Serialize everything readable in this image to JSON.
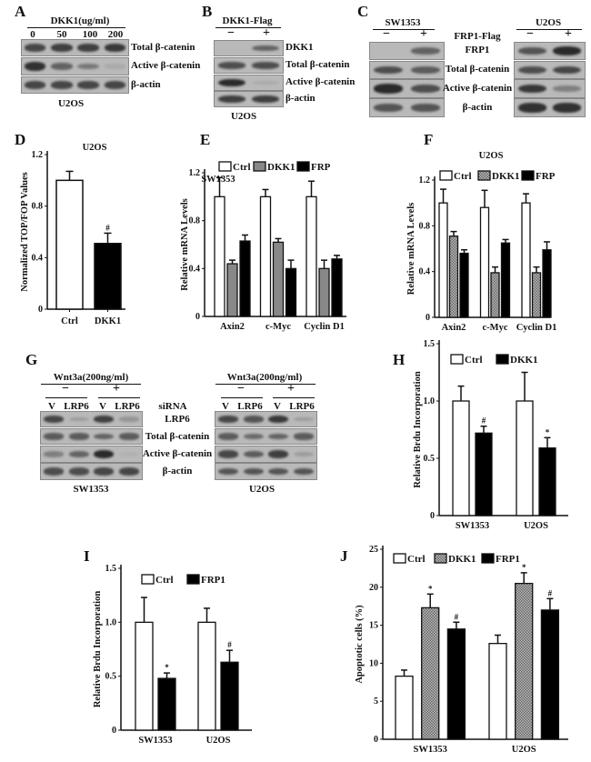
{
  "panels": {
    "A": {
      "label": "A",
      "header": "DKK1(ug/ml)",
      "lanes": [
        "0",
        "50",
        "100",
        "200"
      ],
      "rows": [
        "Total β-catenin",
        "Active β-catenin",
        "β-actin"
      ],
      "cell": "U2OS"
    },
    "B": {
      "label": "B",
      "header": "DKK1-Flag",
      "lanes": [
        "−",
        "+"
      ],
      "rows": [
        "DKK1",
        "Total β-catenin",
        "Active β-catenin",
        "β-actin"
      ],
      "cell": "U2OS"
    },
    "C": {
      "label": "C",
      "left_header": "SW1353",
      "right_header": "U2OS",
      "treatment": "FRP1-Flag",
      "lanes": [
        "−",
        "+"
      ],
      "rows": [
        "FRP1",
        "Total β-catenin",
        "Active β-catenin",
        "β-actin"
      ]
    },
    "G": {
      "label": "G",
      "header": "Wnt3a(200ng/ml)",
      "groups": [
        "−",
        "+"
      ],
      "sirna_label": "siRNA",
      "lanes": [
        "V",
        "LRP6",
        "V",
        "LRP6"
      ],
      "rows": [
        "LRP6",
        "Total β-catenin",
        "Active β-catenin",
        "β-actin"
      ],
      "left_cell": "SW1353",
      "right_cell": "U2OS"
    }
  },
  "chart_data": [
    {
      "panel": "D",
      "type": "bar",
      "title": "U2OS",
      "ylabel": "Normalized TOP/FOP Values",
      "xlabel": "",
      "categories": [
        "Ctrl",
        "DKK1"
      ],
      "series": [
        {
          "values": [
            1.0,
            0.51
          ],
          "errors": [
            0.07,
            0.08
          ],
          "annotations": [
            "",
            "#"
          ],
          "colors": [
            "#ffffff",
            "#000000"
          ]
        }
      ],
      "yticks": [
        "0",
        "0.4",
        "0.8",
        "1.2"
      ],
      "ylim": [
        0,
        1.2
      ],
      "legend": null
    },
    {
      "panel": "E",
      "type": "bar",
      "title": "SW1353",
      "ylabel": "Relative mRNA Levels",
      "xlabel": "",
      "categories": [
        "Axin2",
        "c-Myc",
        "Cyclin D1"
      ],
      "series": [
        {
          "name": "Ctrl",
          "values": [
            1.0,
            1.0,
            1.0
          ],
          "errors": [
            0.16,
            0.06,
            0.13
          ],
          "color": "#ffffff"
        },
        {
          "name": "DKK1",
          "values": [
            0.44,
            0.62,
            0.4
          ],
          "errors": [
            0.03,
            0.03,
            0.07
          ],
          "color": "#888888"
        },
        {
          "name": "FRP",
          "values": [
            0.63,
            0.4,
            0.48
          ],
          "errors": [
            0.05,
            0.07,
            0.03
          ],
          "color": "#000000"
        }
      ],
      "yticks": [
        "0",
        "0.4",
        "0.8",
        "1.2"
      ],
      "ylim": [
        0,
        1.2
      ],
      "legend": "top"
    },
    {
      "panel": "F",
      "type": "bar",
      "title": "U2OS",
      "ylabel": "Relative mRNA Levels",
      "xlabel": "",
      "categories": [
        "Axin2",
        "c-Myc",
        "Cyclin D1"
      ],
      "series": [
        {
          "name": "Ctrl",
          "values": [
            1.0,
            0.96,
            1.0
          ],
          "errors": [
            0.12,
            0.15,
            0.08
          ],
          "color": "#ffffff"
        },
        {
          "name": "DKK1",
          "values": [
            0.71,
            0.39,
            0.39
          ],
          "errors": [
            0.04,
            0.05,
            0.05
          ],
          "color": "hatched-gray"
        },
        {
          "name": "FRP",
          "values": [
            0.56,
            0.65,
            0.59
          ],
          "errors": [
            0.03,
            0.03,
            0.07
          ],
          "color": "#000000"
        }
      ],
      "yticks": [
        "0",
        "0.4",
        "0.8",
        "1.2"
      ],
      "ylim": [
        0,
        1.2
      ],
      "legend": "top"
    },
    {
      "panel": "H",
      "type": "bar",
      "title": "",
      "ylabel": "Relative Brdu Incorporation",
      "xlabel": "",
      "categories": [
        "SW1353",
        "U2OS"
      ],
      "series": [
        {
          "name": "Ctrl",
          "values": [
            1.0,
            1.0
          ],
          "errors": [
            0.13,
            0.25
          ],
          "annotations": [
            "",
            ""
          ],
          "color": "#ffffff"
        },
        {
          "name": "DKK1",
          "values": [
            0.72,
            0.59
          ],
          "errors": [
            0.06,
            0.09
          ],
          "annotations": [
            "#",
            "*"
          ],
          "color": "#000000"
        }
      ],
      "yticks": [
        "0",
        "0.5",
        "1.0",
        "1.5"
      ],
      "ylim": [
        0,
        1.5
      ],
      "legend": "top"
    },
    {
      "panel": "I",
      "type": "bar",
      "title": "",
      "ylabel": "Relative Brdu Incorporation",
      "xlabel": "",
      "categories": [
        "SW1353",
        "U2OS"
      ],
      "series": [
        {
          "name": "Ctrl",
          "values": [
            1.0,
            1.0
          ],
          "errors": [
            0.23,
            0.13
          ],
          "annotations": [
            "",
            ""
          ],
          "color": "#ffffff"
        },
        {
          "name": "FRP1",
          "values": [
            0.48,
            0.63
          ],
          "errors": [
            0.05,
            0.11
          ],
          "annotations": [
            "*",
            "#"
          ],
          "color": "#000000"
        }
      ],
      "yticks": [
        "0",
        "0.5",
        "1.0",
        "1.5"
      ],
      "ylim": [
        0,
        1.5
      ],
      "legend": "top"
    },
    {
      "panel": "J",
      "type": "bar",
      "title": "",
      "ylabel": "Apoptotic cells (%)",
      "xlabel": "",
      "categories": [
        "SW1353",
        "U2OS"
      ],
      "series": [
        {
          "name": "Ctrl",
          "values": [
            8.3,
            12.6
          ],
          "errors": [
            0.8,
            1.1
          ],
          "annotations": [
            "",
            ""
          ],
          "color": "#ffffff"
        },
        {
          "name": "DKK1",
          "values": [
            17.3,
            20.5
          ],
          "errors": [
            1.8,
            1.4
          ],
          "annotations": [
            "*",
            "*"
          ],
          "color": "hatched-gray"
        },
        {
          "name": "FRP1",
          "values": [
            14.5,
            17.0
          ],
          "errors": [
            0.9,
            1.5
          ],
          "annotations": [
            "#",
            "#"
          ],
          "color": "#000000"
        }
      ],
      "yticks": [
        "0",
        "5",
        "10",
        "15",
        "20",
        "25"
      ],
      "ylim": [
        0,
        25
      ],
      "legend": "top"
    }
  ]
}
